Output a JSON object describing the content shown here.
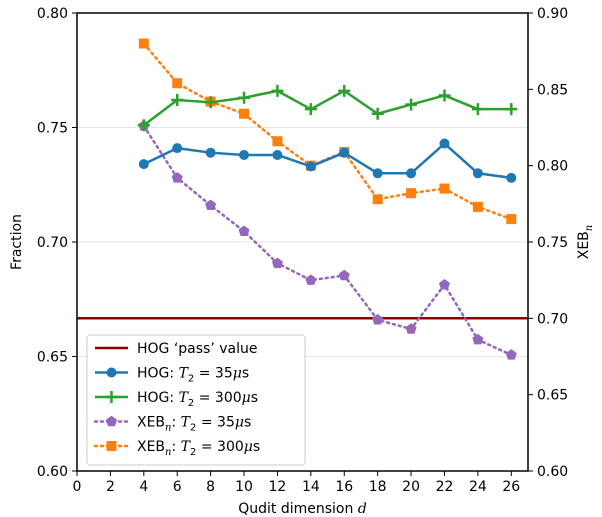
{
  "chart_data": {
    "type": "line",
    "xlabel": "Qudit dimension d",
    "ylabel_left": "Fraction",
    "ylabel_right": "XEB_n",
    "xlim": [
      0,
      27
    ],
    "ylim_left": [
      0.6,
      0.8
    ],
    "ylim_right": [
      0.6,
      0.9
    ],
    "xticks": [
      0,
      2,
      4,
      6,
      8,
      10,
      12,
      14,
      16,
      18,
      20,
      22,
      24,
      26
    ],
    "yticks_left": [
      "0.60",
      "0.65",
      "0.70",
      "0.75",
      "0.80"
    ],
    "yticks_right": [
      "0.60",
      "0.65",
      "0.70",
      "0.75",
      "0.80",
      "0.85",
      "0.90"
    ],
    "grid": "horizontal",
    "legend_position": "bottom-left",
    "hline": {
      "name": "HOG ‘pass’ value",
      "value": 0.6667,
      "axis": "left",
      "color": "#8b0000"
    },
    "series": [
      {
        "name": "HOG: T2 = 35μs",
        "axis": "left",
        "style": "solid",
        "marker": "circle",
        "color": "#1f77b4",
        "x": [
          4,
          6,
          8,
          10,
          12,
          14,
          16,
          18,
          20,
          22,
          24,
          26
        ],
        "values": [
          0.734,
          0.741,
          0.739,
          0.738,
          0.738,
          0.733,
          0.739,
          0.73,
          0.73,
          0.743,
          0.73,
          0.728
        ]
      },
      {
        "name": "HOG: T2 = 300μs",
        "axis": "left",
        "style": "solid",
        "marker": "plus",
        "color": "#2ca02c",
        "x": [
          4,
          6,
          8,
          10,
          12,
          14,
          16,
          18,
          20,
          22,
          24,
          26
        ],
        "values": [
          0.751,
          0.762,
          0.761,
          0.763,
          0.766,
          0.758,
          0.766,
          0.756,
          0.76,
          0.764,
          0.758,
          0.758
        ]
      },
      {
        "name": "XEB_n: T2 = 35μs",
        "axis": "right",
        "style": "dotted",
        "marker": "pentagon",
        "color": "#9467bd",
        "x": [
          4,
          6,
          8,
          10,
          12,
          14,
          16,
          18,
          20,
          22,
          24,
          26
        ],
        "values": [
          0.826,
          0.792,
          0.774,
          0.757,
          0.736,
          0.725,
          0.728,
          0.699,
          0.693,
          0.722,
          0.686,
          0.676
        ]
      },
      {
        "name": "XEB_n: T2 = 300μs",
        "axis": "right",
        "style": "dotted",
        "marker": "square",
        "color": "#ff7f0e",
        "x": [
          4,
          6,
          8,
          10,
          12,
          14,
          16,
          18,
          20,
          22,
          24,
          26
        ],
        "values": [
          0.88,
          0.854,
          0.842,
          0.834,
          0.816,
          0.8,
          0.809,
          0.778,
          0.782,
          0.785,
          0.773,
          0.765
        ]
      }
    ],
    "legend": {
      "hog_pass": "HOG ‘pass’ value",
      "hog_35_prefix": "HOG: ",
      "hog_300_prefix": "HOG: ",
      "xeb_35_prefix": "XEB",
      "xeb_300_prefix": "XEB",
      "xeb_sub": "n",
      "t2_sym": "T",
      "t2_sub": "2",
      "eq": " = ",
      "val_35": "35",
      "val_300": "300",
      "unit_mu": "μ",
      "unit_s": "s"
    }
  }
}
